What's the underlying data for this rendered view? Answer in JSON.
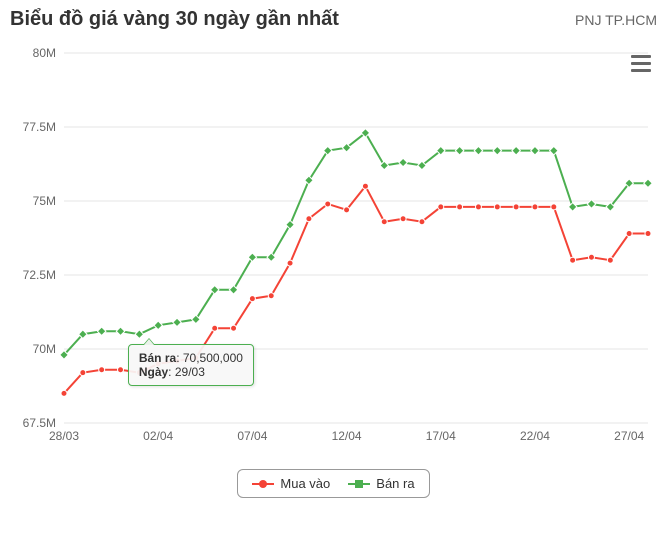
{
  "header": {
    "title": "Biểu đồ giá vàng 30 ngày gần nhất",
    "subtitle": "PNJ TP.HCM"
  },
  "chart": {
    "type": "line",
    "background_color": "#ffffff",
    "grid_color": "#e6e6e6",
    "axis_label_fontsize": 12,
    "axis_label_color": "#666666",
    "ylim": [
      67.5,
      80
    ],
    "ytick_values": [
      67.5,
      70,
      72.5,
      75,
      77.5,
      80
    ],
    "ytick_labels": [
      "67.5M",
      "70M",
      "72.5M",
      "75M",
      "77.5M",
      "80M"
    ],
    "xtick_indices": [
      0,
      5,
      10,
      15,
      20,
      25,
      30
    ],
    "xtick_labels": [
      "28/03",
      "02/04",
      "07/04",
      "12/04",
      "17/04",
      "22/04",
      "27/04"
    ],
    "categories": [
      "28/03",
      "29/03",
      "30/03",
      "31/03",
      "01/04",
      "02/04",
      "03/04",
      "04/04",
      "05/04",
      "06/04",
      "07/04",
      "08/04",
      "09/04",
      "10/04",
      "11/04",
      "12/04",
      "13/04",
      "14/04",
      "15/04",
      "16/04",
      "17/04",
      "18/04",
      "19/04",
      "20/04",
      "21/04",
      "22/04",
      "23/04",
      "24/04",
      "25/04",
      "26/04",
      "27/04",
      "28/04"
    ],
    "series": [
      {
        "name": "Mua vào",
        "color": "#f44336",
        "marker": "circle",
        "marker_size": 6,
        "line_width": 2,
        "values": [
          68.5,
          69.2,
          69.3,
          69.3,
          69.2,
          69.5,
          69.6,
          69.7,
          70.7,
          70.7,
          71.7,
          71.8,
          72.9,
          74.4,
          74.9,
          74.7,
          75.5,
          74.3,
          74.4,
          74.3,
          74.8,
          74.8,
          74.8,
          74.8,
          74.8,
          74.8,
          74.8,
          73.0,
          73.1,
          73.0,
          73.9,
          73.9
        ]
      },
      {
        "name": "Bán ra",
        "color": "#4caf50",
        "marker": "diamond",
        "marker_size": 6,
        "line_width": 2,
        "values": [
          69.8,
          70.5,
          70.6,
          70.6,
          70.5,
          70.8,
          70.9,
          71.0,
          72.0,
          72.0,
          73.1,
          73.1,
          74.2,
          75.7,
          76.7,
          76.8,
          77.3,
          76.2,
          76.3,
          76.2,
          76.7,
          76.7,
          76.7,
          76.7,
          76.7,
          76.7,
          76.7,
          74.8,
          74.9,
          74.8,
          75.6,
          75.6
        ]
      }
    ],
    "tooltip": {
      "point_index": 1,
      "series_index": 1,
      "line1_label": "Bán ra",
      "line1_value": "70,500,000",
      "line2_label": "Ngày",
      "line2_value": "29/03"
    },
    "legend": {
      "items": [
        {
          "label": "Mua vào",
          "series": 0
        },
        {
          "label": "Bán ra",
          "series": 1
        }
      ]
    }
  }
}
